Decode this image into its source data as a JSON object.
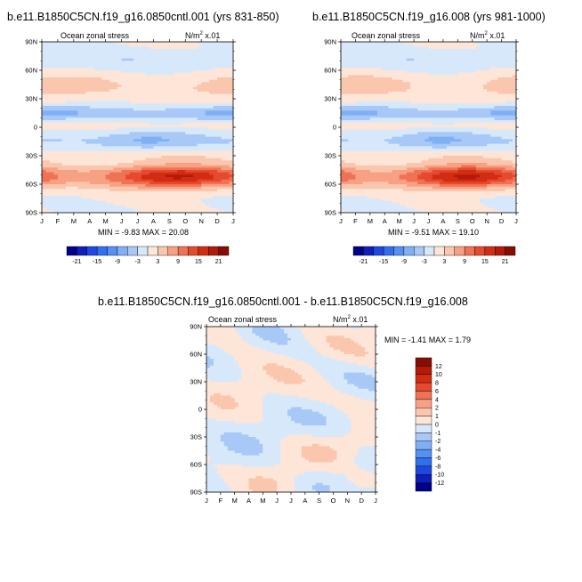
{
  "chart_data": [
    {
      "type": "heatmap",
      "title": "b.e11.B1850C5CN.f19_g16.0850cntl.001 (yrs 831-850)",
      "subtitle_left": "Ocean zonal stress",
      "units_main": "N/m",
      "units_exp": "2",
      "units_tail": " x.01",
      "x_ticks": [
        "J",
        "F",
        "M",
        "A",
        "M",
        "J",
        "J",
        "A",
        "S",
        "O",
        "N",
        "D",
        "J"
      ],
      "y_ticks": [
        "90N",
        "60N",
        "30N",
        "0",
        "30S",
        "60S",
        "90S"
      ],
      "y_values": [
        90,
        60,
        30,
        0,
        -30,
        -60,
        -90
      ],
      "stats": "MIN =  -9.83  MAX =  20.08",
      "min": -9.83,
      "max": 20.08,
      "colorbar_labels": [
        "-21",
        "-15",
        "-9",
        "-3",
        "3",
        "9",
        "15",
        "21"
      ]
    },
    {
      "type": "heatmap",
      "title": "b.e11.B1850C5CN.f19_g16.008 (yrs 981-1000)",
      "subtitle_left": "Ocean zonal stress",
      "units_main": "N/m",
      "units_exp": "2",
      "units_tail": " x.01",
      "x_ticks": [
        "J",
        "F",
        "M",
        "A",
        "M",
        "J",
        "J",
        "A",
        "S",
        "O",
        "N",
        "D",
        "J"
      ],
      "y_ticks": [
        "90N",
        "60N",
        "30N",
        "0",
        "30S",
        "60S",
        "90S"
      ],
      "y_values": [
        90,
        60,
        30,
        0,
        -30,
        -60,
        -90
      ],
      "stats": "MIN =  -9.51  MAX =  19.10",
      "min": -9.51,
      "max": 19.1,
      "colorbar_labels": [
        "-21",
        "-15",
        "-9",
        "-3",
        "3",
        "9",
        "15",
        "21"
      ]
    },
    {
      "type": "heatmap",
      "title": "b.e11.B1850C5CN.f19_g16.0850cntl.001 - b.e11.B1850C5CN.f19_g16.008",
      "subtitle_left": "Ocean zonal stress",
      "units_main": "N/m",
      "units_exp": "2",
      "units_tail": " x.01",
      "x_ticks": [
        "J",
        "F",
        "M",
        "A",
        "M",
        "J",
        "J",
        "A",
        "S",
        "O",
        "N",
        "D",
        "J"
      ],
      "y_ticks": [
        "90N",
        "60N",
        "30N",
        "0",
        "30S",
        "60S",
        "90S"
      ],
      "y_values": [
        90,
        60,
        30,
        0,
        -30,
        -60,
        -90
      ],
      "stats": "MIN =  -1.41  MAX =   1.79",
      "min": -1.41,
      "max": 1.79,
      "colorbar_labels": [
        "12",
        "10",
        "8",
        "6",
        "4",
        "2",
        "1",
        "0",
        "-1",
        "-2",
        "-4",
        "-6",
        "-8",
        "-10",
        "-12"
      ]
    }
  ],
  "colors": {
    "main_scale": [
      "#00008a",
      "#0e1fb8",
      "#1e48df",
      "#3070f0",
      "#5590f2",
      "#7fb0f5",
      "#a8c9f7",
      "#d7e8fb",
      "#fde6d8",
      "#fbc6ae",
      "#f7a083",
      "#f07255",
      "#e64a2e",
      "#d22c13",
      "#b31b08",
      "#870c02"
    ],
    "diff_scale": [
      "#870c02",
      "#b31b08",
      "#d22c13",
      "#e64a2e",
      "#f07255",
      "#f7a083",
      "#fbc6ae",
      "#fde6d8",
      "#d7e8fb",
      "#a8c9f7",
      "#7fb0f5",
      "#5590f2",
      "#3070f0",
      "#1e48df",
      "#0e1fb8",
      "#00008a"
    ]
  }
}
